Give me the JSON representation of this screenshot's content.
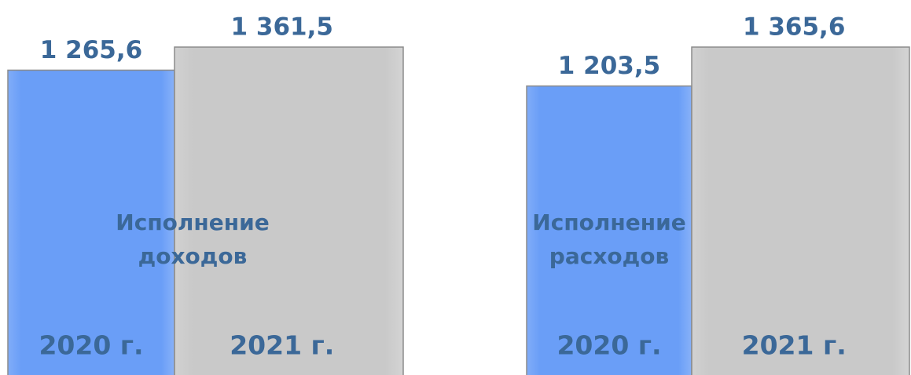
{
  "chart_data": [
    {
      "type": "bar",
      "title": "Исполнение доходов",
      "categories": [
        "2020 г.",
        "2021 г."
      ],
      "values": [
        1265.6,
        1361.5
      ],
      "value_labels": [
        "1 265,6",
        "1 361,5"
      ],
      "colors": [
        "#6a9ef7",
        "#c9c9c9"
      ]
    },
    {
      "type": "bar",
      "title": "Исполнение расходов",
      "categories": [
        "2020 г.",
        "2021 г."
      ],
      "values": [
        1203.5,
        1365.6
      ],
      "value_labels": [
        "1 203,5",
        "1 365,6"
      ],
      "colors": [
        "#6a9ef7",
        "#c9c9c9"
      ]
    }
  ]
}
